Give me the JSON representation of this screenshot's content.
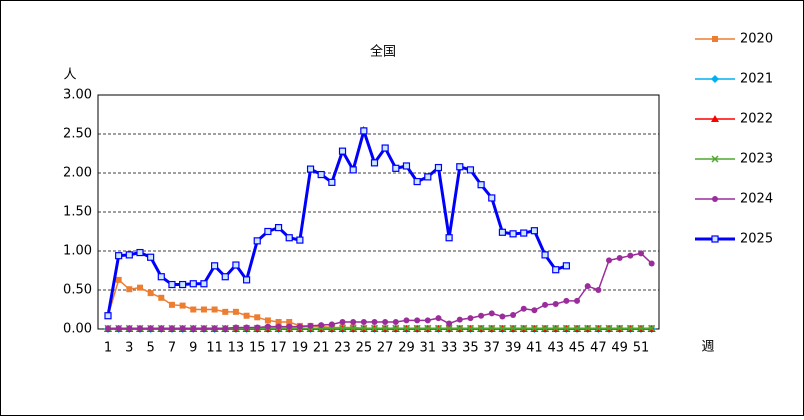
{
  "chart_data": {
    "type": "line",
    "title": "全国",
    "y_label": "人",
    "x_label": "週",
    "categories": [
      1,
      null,
      3,
      null,
      5,
      null,
      7,
      null,
      9,
      null,
      11,
      null,
      13,
      null,
      15,
      null,
      17,
      null,
      19,
      null,
      21,
      null,
      23,
      null,
      25,
      null,
      27,
      null,
      29,
      null,
      31,
      null,
      33,
      null,
      35,
      null,
      37,
      null,
      39,
      null,
      41,
      null,
      43,
      null,
      45,
      null,
      47,
      null,
      49,
      null,
      51,
      null
    ],
    "ylim": [
      0,
      3
    ],
    "yticks": [
      {
        "value": 0,
        "label": "0.00"
      },
      {
        "value": 0.5,
        "label": "0.50"
      },
      {
        "value": 1,
        "label": "1.00"
      },
      {
        "value": 1.5,
        "label": "1.50"
      },
      {
        "value": 2,
        "label": "2.00"
      },
      {
        "value": 2.5,
        "label": "2.50"
      },
      {
        "value": 3,
        "label": "3.00"
      }
    ],
    "grid": true,
    "legend": "right",
    "series": [
      {
        "name": "2020",
        "color": "#ed7d31",
        "marker": "square",
        "values": [
          0.17,
          0.63,
          0.51,
          0.53,
          0.46,
          0.4,
          0.31,
          0.3,
          0.25,
          0.25,
          0.25,
          0.22,
          0.22,
          0.17,
          0.15,
          0.11,
          0.09,
          0.09,
          0.04,
          0.04,
          0.03,
          0.02,
          0.02,
          0.02,
          0.01,
          0.01,
          0.01,
          0.01,
          0.01,
          0.01,
          0.01,
          0.01,
          0.01,
          0.01,
          0.01,
          0.01,
          0.01,
          0.01,
          0.01,
          0.01,
          0.01,
          0.01,
          0.01,
          0.01,
          0.01,
          0.01,
          0.01,
          0.01,
          0.01,
          0.01,
          0.01,
          0.01
        ]
      },
      {
        "name": "2021",
        "color": "#00b0f0",
        "marker": "diamond",
        "values": [
          0,
          0,
          0,
          0,
          0,
          0,
          0,
          0,
          0,
          0,
          0,
          0,
          0,
          0,
          0,
          0,
          0,
          0,
          0,
          0,
          0,
          0,
          0,
          0,
          0,
          0,
          0,
          0,
          0,
          0,
          0,
          0,
          0,
          0,
          0,
          0,
          0,
          0,
          0,
          0,
          0,
          0,
          0,
          0,
          0,
          0,
          0,
          0,
          0,
          0,
          0,
          0
        ]
      },
      {
        "name": "2022",
        "color": "#ff0000",
        "marker": "triangle",
        "values": [
          0,
          0,
          0,
          0,
          0,
          0,
          0,
          0,
          0,
          0,
          0,
          0,
          0,
          0,
          0,
          0,
          0,
          0,
          0,
          0,
          0,
          0,
          0,
          0,
          0,
          0,
          0,
          0,
          0,
          0,
          0,
          0,
          0,
          0,
          0,
          0,
          0,
          0,
          0,
          0,
          0,
          0,
          0,
          0,
          0,
          0,
          0,
          0,
          0,
          0,
          0,
          0
        ]
      },
      {
        "name": "2023",
        "color": "#4ea72e",
        "marker": "x",
        "values": [
          0.01,
          0.01,
          0.01,
          0.01,
          0.01,
          0.01,
          0.01,
          0.01,
          0.01,
          0.01,
          0.01,
          0.01,
          0.01,
          0.01,
          0.01,
          0.01,
          0.01,
          0.01,
          0.01,
          0.01,
          0.01,
          0.01,
          0.01,
          0.01,
          0.01,
          0.01,
          0.01,
          0.01,
          0.01,
          0.01,
          0.01,
          0.01,
          0.01,
          0.01,
          0.01,
          0.01,
          0.01,
          0.01,
          0.01,
          0.01,
          0.01,
          0.01,
          0.01,
          0.01,
          0.01,
          0.01,
          0.01,
          0.01,
          0.01,
          0.01,
          0.01,
          0.01
        ]
      },
      {
        "name": "2024",
        "color": "#9b2d9b",
        "marker": "circle",
        "values": [
          0.01,
          0.01,
          0.01,
          0.01,
          0.01,
          0.01,
          0.01,
          0.01,
          0.01,
          0.01,
          0.01,
          0.01,
          0.02,
          0.02,
          0.02,
          0.03,
          0.03,
          0.03,
          0.03,
          0.04,
          0.05,
          0.06,
          0.09,
          0.09,
          0.09,
          0.09,
          0.09,
          0.09,
          0.11,
          0.11,
          0.11,
          0.14,
          0.07,
          0.12,
          0.14,
          0.17,
          0.2,
          0.16,
          0.18,
          0.26,
          0.24,
          0.31,
          0.32,
          0.36,
          0.36,
          0.55,
          0.5,
          0.88,
          0.91,
          0.94,
          0.97,
          0.84
        ]
      },
      {
        "name": "2025",
        "color": "#0000ff",
        "marker": "square-open",
        "line_width": 3,
        "values": [
          0.17,
          0.94,
          0.95,
          0.98,
          0.92,
          0.67,
          0.57,
          0.57,
          0.58,
          0.58,
          0.81,
          0.67,
          0.82,
          0.63,
          1.13,
          1.25,
          1.3,
          1.17,
          1.14,
          2.05,
          1.98,
          1.88,
          2.28,
          2.04,
          2.54,
          2.13,
          2.32,
          2.06,
          2.09,
          1.89,
          1.95,
          2.07,
          1.17,
          2.08,
          2.04,
          1.85,
          1.68,
          1.24,
          1.22,
          1.23,
          1.26,
          0.95,
          0.76,
          0.81,
          null,
          null,
          null,
          null,
          null,
          null,
          null,
          null
        ]
      }
    ]
  }
}
